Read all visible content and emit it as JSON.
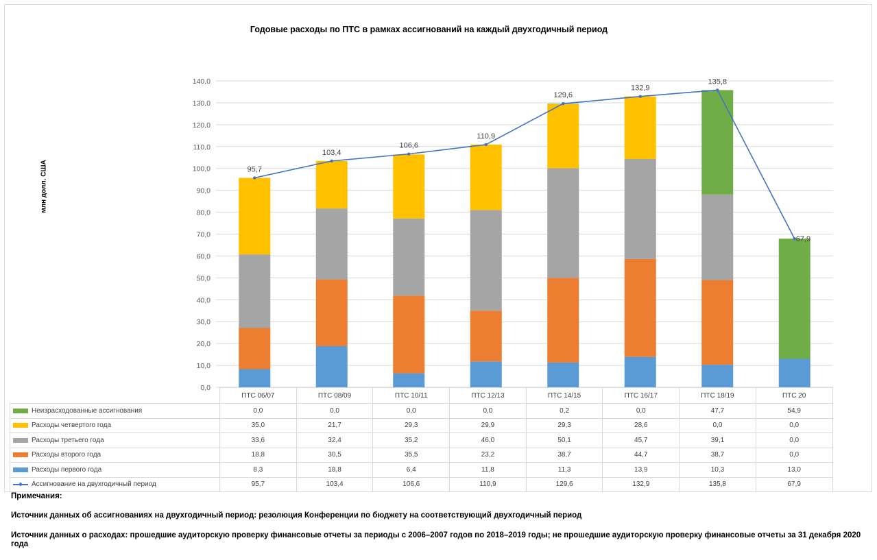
{
  "chart_data": {
    "type": "bar",
    "stacked": true,
    "title": "Годовые расходы по ПТС в рамках ассигнований на каждый двухгодичный период",
    "ylabel": "млн долл. США",
    "ylim": [
      0,
      140
    ],
    "yticks": [
      "0,0",
      "10,0",
      "20,0",
      "30,0",
      "40,0",
      "50,0",
      "60,0",
      "70,0",
      "80,0",
      "90,0",
      "100,0",
      "110,0",
      "120,0",
      "130,0",
      "140,0"
    ],
    "grid": true,
    "categories": [
      "ПТС 06/07",
      "ПТС 08/09",
      "ПТС 10/11",
      "ПТС 12/13",
      "ПТС 14/15",
      "ПТС 16/17",
      "ПТС 18/19",
      "ПТС 20"
    ],
    "series": [
      {
        "name": "Неизрасходованные ассигнования",
        "color": "#70ad47",
        "values": [
          0.0,
          0.0,
          0.0,
          0.0,
          0.2,
          0.0,
          47.7,
          54.9
        ],
        "labels": [
          "0,0",
          "0,0",
          "0,0",
          "0,0",
          "0,2",
          "0,0",
          "47,7",
          "54,9"
        ]
      },
      {
        "name": "Расходы четвертого года",
        "color": "#ffc000",
        "values": [
          35.0,
          21.7,
          29.3,
          29.9,
          29.3,
          28.6,
          0.0,
          0.0
        ],
        "labels": [
          "35,0",
          "21,7",
          "29,3",
          "29,9",
          "29,3",
          "28,6",
          "0,0",
          "0,0"
        ]
      },
      {
        "name": "Расходы третьего года",
        "color": "#a5a5a5",
        "values": [
          33.6,
          32.4,
          35.2,
          46.0,
          50.1,
          45.7,
          39.1,
          0.0
        ],
        "labels": [
          "33,6",
          "32,4",
          "35,2",
          "46,0",
          "50,1",
          "45,7",
          "39,1",
          "0,0"
        ]
      },
      {
        "name": "Расходы второго года",
        "color": "#ed7d31",
        "values": [
          18.8,
          30.5,
          35.5,
          23.2,
          38.7,
          44.7,
          38.7,
          0.0
        ],
        "labels": [
          "18,8",
          "30,5",
          "35,5",
          "23,2",
          "38,7",
          "44,7",
          "38,7",
          "0,0"
        ]
      },
      {
        "name": "Расходы первого года",
        "color": "#5b9bd5",
        "values": [
          8.3,
          18.8,
          6.4,
          11.8,
          11.3,
          13.9,
          10.3,
          13.0
        ],
        "labels": [
          "8,3",
          "18,8",
          "6,4",
          "11,8",
          "11,3",
          "13,9",
          "10,3",
          "13,0"
        ]
      }
    ],
    "line": {
      "name": "Ассигнование на двухгодичный период",
      "color": "#4472c4",
      "values": [
        95.7,
        103.4,
        106.6,
        110.9,
        129.6,
        132.9,
        135.8,
        67.9
      ],
      "labels": [
        "95,7",
        "103,4",
        "106,6",
        "110,9",
        "129,6",
        "132,9",
        "135,8",
        "67,9"
      ]
    }
  },
  "notes": {
    "heading": "Примечания:",
    "source_allocations": "Источник данных об ассигнованиях на двухгодичный период: резолюция Конференции по бюджету на соответствующий двухгодичный период",
    "source_expenses": "Источник данных о расходах: прошедшие аудиторскую проверку финансовые отчеты за периоды с 2006–2007 годов по 2018–2019 годы; не прошедшие аудиторскую проверку финансовые отчеты за 31 декабря 2020 года"
  }
}
